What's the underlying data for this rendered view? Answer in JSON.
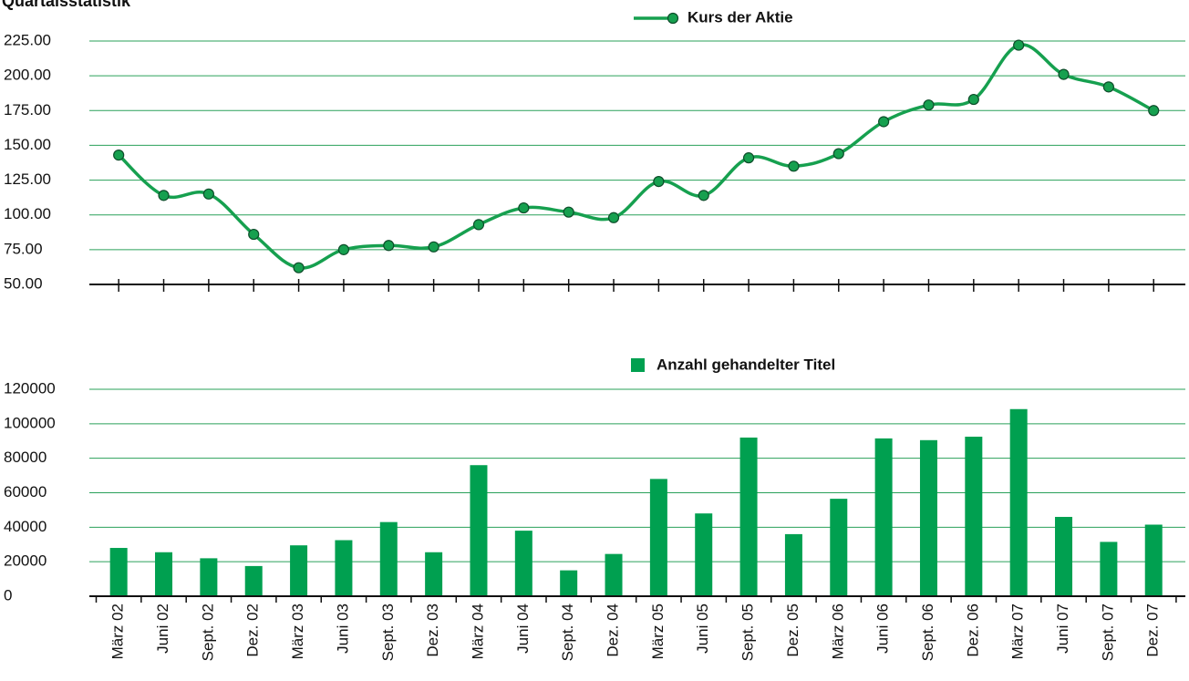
{
  "chart_data": [
    {
      "type": "line",
      "title": "Quartalsstatistik",
      "series": [
        {
          "name": "Kurs der Aktie",
          "color": "#16a04f",
          "values": [
            143,
            114,
            115,
            86,
            62,
            75,
            78,
            77,
            93,
            105,
            102,
            98,
            124,
            114,
            141,
            135,
            144,
            167,
            179,
            183,
            222,
            201,
            192,
            175
          ]
        }
      ],
      "ylim": [
        50,
        225
      ],
      "yticks": [
        {
          "value": 50,
          "label": "50.00"
        },
        {
          "value": 75,
          "label": "75.00"
        },
        {
          "value": 100,
          "label": "100.00"
        },
        {
          "value": 125,
          "label": "125.00"
        },
        {
          "value": 150,
          "label": "150.00"
        },
        {
          "value": 175,
          "label": "175.00"
        },
        {
          "value": 200,
          "label": "200.00"
        },
        {
          "value": 225,
          "label": "225.00"
        }
      ],
      "grid": true
    },
    {
      "type": "bar",
      "categories": [
        "März 02",
        "Juni 02",
        "Sept. 02",
        "Dez. 02",
        "März 03",
        "Juni 03",
        "Sept. 03",
        "Dez. 03",
        "März 04",
        "Juni 04",
        "Sept. 04",
        "Dez. 04",
        "März 05",
        "Juni 05",
        "Sept. 05",
        "Dez. 05",
        "März 06",
        "Juni 06",
        "Sept. 06",
        "Dez. 06",
        "März 07",
        "Juni 07",
        "Sept. 07",
        "Dez. 07"
      ],
      "series": [
        {
          "name": "Anzahl gehandelter Titel",
          "color": "#00a050",
          "values": [
            28000,
            25500,
            22000,
            17500,
            29500,
            32500,
            43000,
            25500,
            76000,
            38000,
            15000,
            24500,
            68000,
            48000,
            92000,
            36000,
            56500,
            91500,
            90500,
            92500,
            108500,
            46000,
            31500,
            41500
          ]
        }
      ],
      "ylim": [
        0,
        120000
      ],
      "yticks": [
        0,
        20000,
        40000,
        60000,
        80000,
        100000,
        120000
      ],
      "grid": true
    }
  ]
}
